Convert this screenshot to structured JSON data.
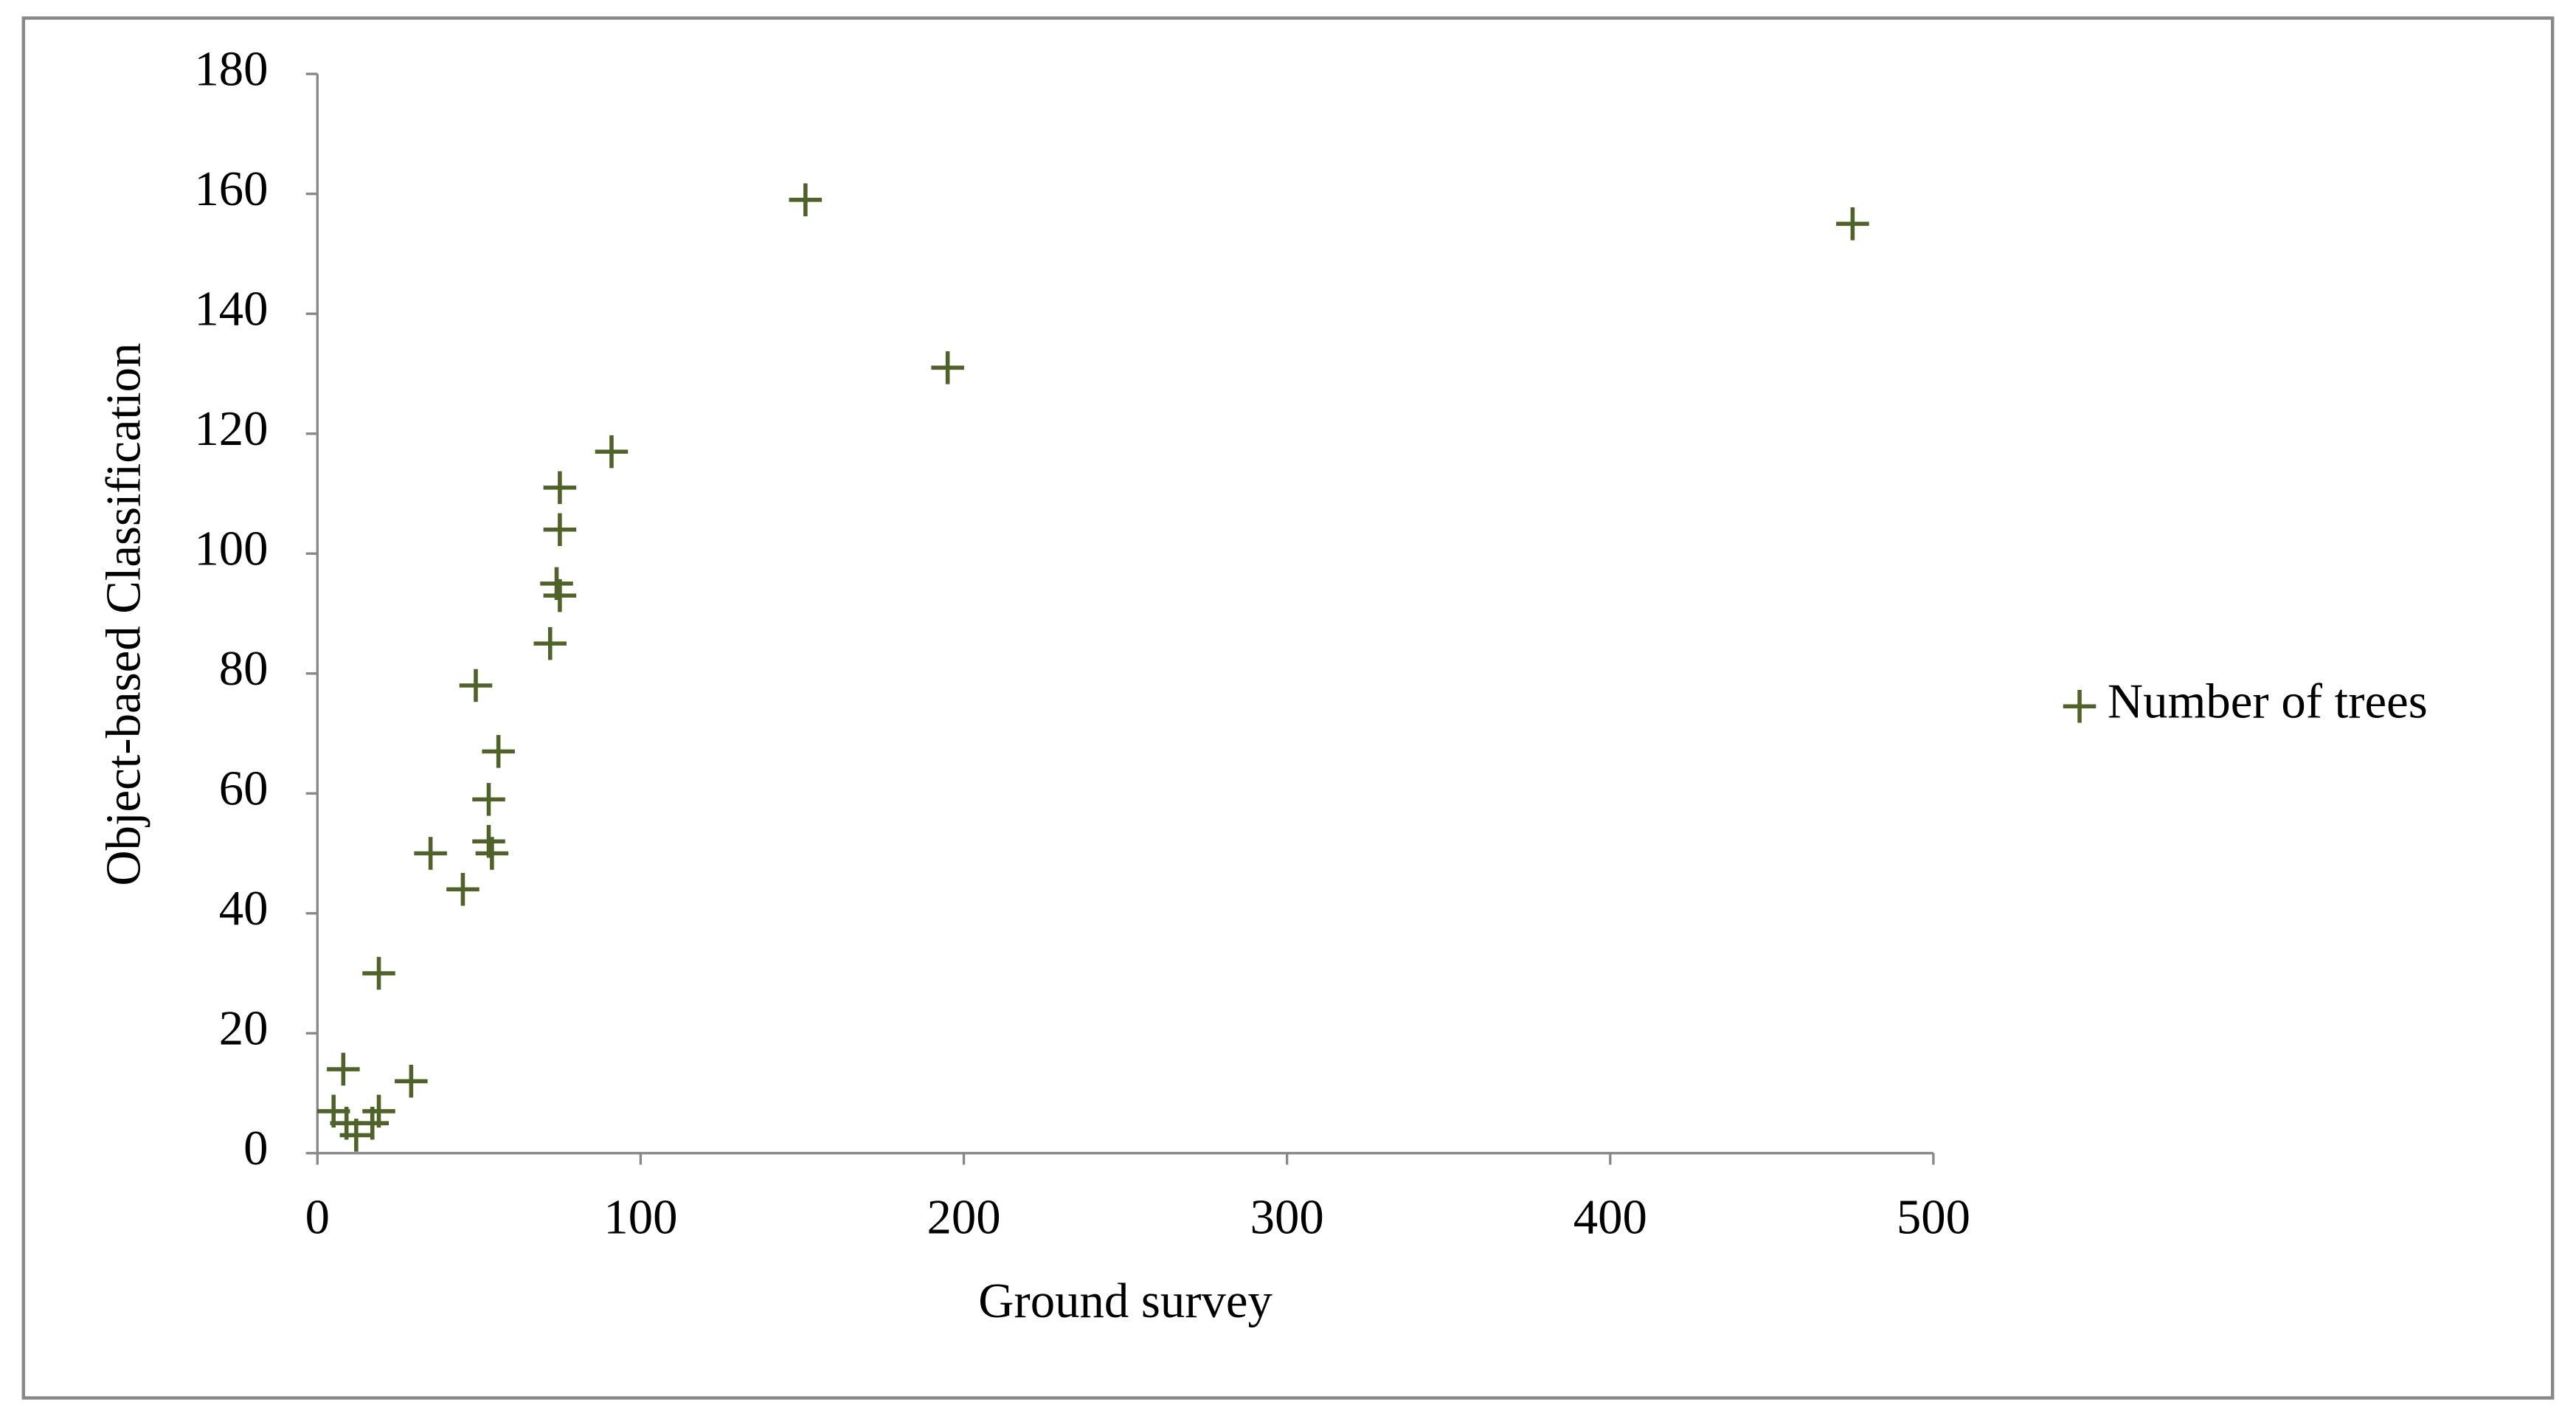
{
  "chart_data": {
    "type": "scatter",
    "x_label": "Ground survey",
    "y_label": "Object-based Classification",
    "xlim": [
      0,
      500
    ],
    "xticks": [
      0,
      100,
      200,
      300,
      400,
      500
    ],
    "ylim": [
      0,
      180
    ],
    "yticks": [
      0,
      20,
      40,
      60,
      80,
      100,
      120,
      140,
      160,
      180
    ],
    "legend": "right",
    "series": [
      {
        "name": "Number of trees",
        "color": "#4f6228",
        "marker": "+",
        "x": [
          8,
          5,
          9,
          12,
          17,
          19,
          19,
          29,
          35,
          45,
          49,
          53,
          53,
          54,
          56,
          72,
          74,
          75,
          75,
          75,
          91,
          151,
          195,
          475
        ],
        "values": [
          14,
          7,
          5,
          3,
          5,
          7,
          30,
          12,
          50,
          44,
          78,
          59,
          52,
          50,
          67,
          85,
          95,
          93,
          104,
          111,
          117,
          159,
          131,
          155
        ]
      }
    ]
  }
}
